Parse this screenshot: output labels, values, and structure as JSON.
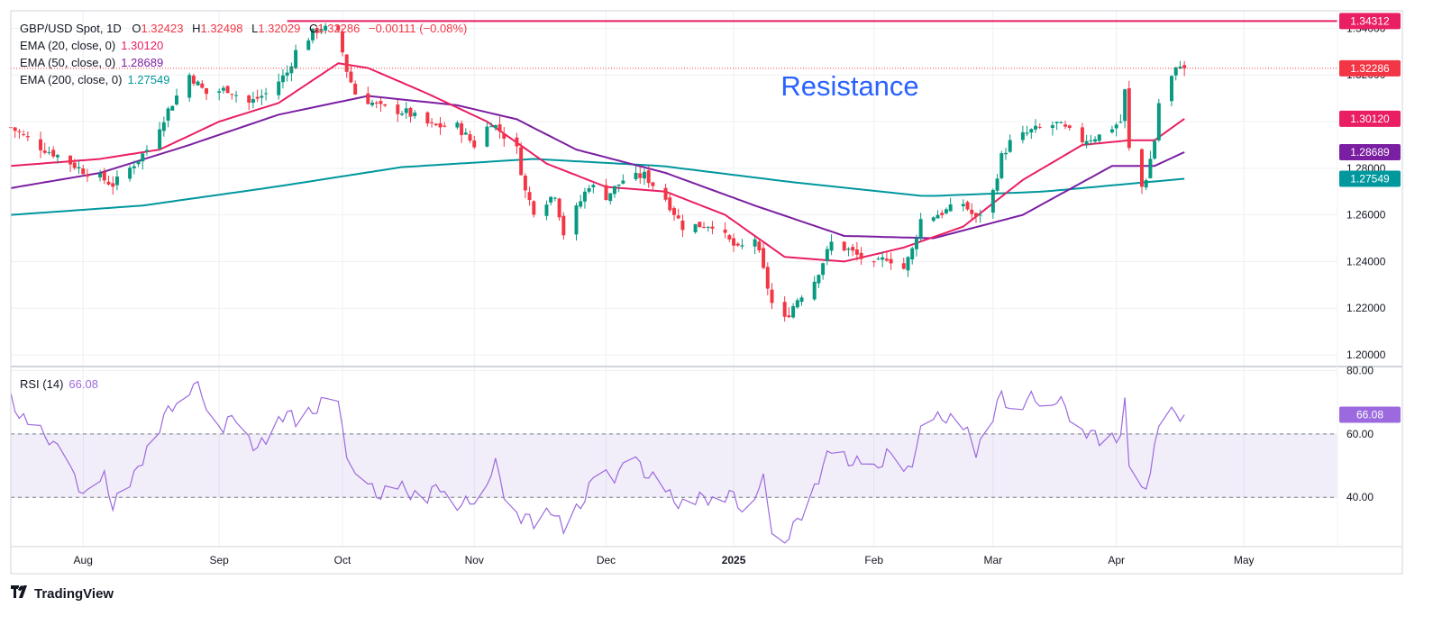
{
  "header": {
    "symbol": "GBP/USD Spot, 1D",
    "ohlc": [
      {
        "k": "O",
        "v": "1.32423"
      },
      {
        "k": "H",
        "v": "1.32498"
      },
      {
        "k": "L",
        "v": "1.32029"
      },
      {
        "k": "C",
        "v": "1.32286"
      }
    ],
    "change": "−0.00111 (−0.08%)",
    "ema20_label": "EMA (20, close, 0)",
    "ema20_value": "1.30120",
    "ema50_label": "EMA (50, close, 0)",
    "ema50_value": "1.28689",
    "ema200_label": "EMA (200, close, 0)",
    "ema200_value": "1.27549"
  },
  "rsi": {
    "label": "RSI (14)",
    "value": "66.08"
  },
  "annotation": {
    "text": "Resistance",
    "level": "1.34312"
  },
  "brand": {
    "name": "TradingView"
  },
  "colors": {
    "up": "#089981",
    "down": "#f23645",
    "ema20": "#e91e63",
    "ema50": "#7b1fa2",
    "ema200": "#00979d",
    "rsi": "#9c6ade",
    "resistance": "#e91e63",
    "text_blue": "#2962ff"
  },
  "chart_data": [
    {
      "type": "candlestick",
      "title": "GBP/USD Spot, 1D",
      "ylim": [
        1.195,
        1.3475
      ],
      "y_ticks": [
        "1.20000",
        "1.22000",
        "1.24000",
        "1.26000",
        "1.28000",
        "1.30000",
        "1.32000",
        "1.34000"
      ],
      "x_ticks": [
        "Aug",
        "Sep",
        "Oct",
        "Nov",
        "Dec",
        "2025",
        "Feb",
        "Mar",
        "Apr",
        "May"
      ],
      "x_tick_dates": [
        "2024-08-01",
        "2024-09-02",
        "2024-10-01",
        "2024-11-01",
        "2024-12-02",
        "2025-01-01",
        "2025-02-03",
        "2025-03-03",
        "2025-04-01",
        "2025-05-01"
      ],
      "x_range": [
        "2024-07-15",
        "2025-05-23"
      ],
      "last_date": "2025-04-17",
      "close_anchors": [
        [
          "2024-07-15",
          1.2975
        ],
        [
          "2024-07-22",
          1.289
        ],
        [
          "2024-07-26",
          1.2855
        ],
        [
          "2024-08-01",
          1.279
        ],
        [
          "2024-08-05",
          1.276
        ],
        [
          "2024-08-08",
          1.273
        ],
        [
          "2024-08-12",
          1.28
        ],
        [
          "2024-08-16",
          1.288
        ],
        [
          "2024-08-21",
          1.305
        ],
        [
          "2024-08-26",
          1.32
        ],
        [
          "2024-08-30",
          1.312
        ],
        [
          "2024-09-04",
          1.314
        ],
        [
          "2024-09-09",
          1.308
        ],
        [
          "2024-09-13",
          1.312
        ],
        [
          "2024-09-18",
          1.321
        ],
        [
          "2024-09-20",
          1.33
        ],
        [
          "2024-09-24",
          1.338
        ],
        [
          "2024-09-26",
          1.3405
        ],
        [
          "2024-09-30",
          1.3375
        ],
        [
          "2024-10-02",
          1.322
        ],
        [
          "2024-10-04",
          1.312
        ],
        [
          "2024-10-10",
          1.306
        ],
        [
          "2024-10-16",
          1.304
        ],
        [
          "2024-10-22",
          1.298
        ],
        [
          "2024-10-28",
          1.298
        ],
        [
          "2024-11-01",
          1.29
        ],
        [
          "2024-11-05",
          1.3
        ],
        [
          "2024-11-07",
          1.296
        ],
        [
          "2024-11-11",
          1.288
        ],
        [
          "2024-11-13",
          1.27
        ],
        [
          "2024-11-15",
          1.262
        ],
        [
          "2024-11-20",
          1.269
        ],
        [
          "2024-11-22",
          1.252
        ],
        [
          "2024-11-28",
          1.273
        ],
        [
          "2024-12-02",
          1.268
        ],
        [
          "2024-12-06",
          1.275
        ],
        [
          "2024-12-11",
          1.277
        ],
        [
          "2024-12-16",
          1.267
        ],
        [
          "2024-12-20",
          1.255
        ],
        [
          "2024-12-27",
          1.256
        ],
        [
          "2025-01-02",
          1.245
        ],
        [
          "2025-01-06",
          1.25
        ],
        [
          "2025-01-10",
          1.222
        ],
        [
          "2025-01-13",
          1.215
        ],
        [
          "2025-01-16",
          1.224
        ],
        [
          "2025-01-20",
          1.232
        ],
        [
          "2025-01-24",
          1.248
        ],
        [
          "2025-01-28",
          1.245
        ],
        [
          "2025-02-03",
          1.238
        ],
        [
          "2025-02-06",
          1.242
        ],
        [
          "2025-02-10",
          1.237
        ],
        [
          "2025-02-12",
          1.245
        ],
        [
          "2025-02-14",
          1.258
        ],
        [
          "2025-02-19",
          1.261
        ],
        [
          "2025-02-24",
          1.265
        ],
        [
          "2025-02-27",
          1.258
        ],
        [
          "2025-03-03",
          1.27
        ],
        [
          "2025-03-05",
          1.285
        ],
        [
          "2025-03-07",
          1.291
        ],
        [
          "2025-03-12",
          1.296
        ],
        [
          "2025-03-18",
          1.299
        ],
        [
          "2025-03-24",
          1.292
        ],
        [
          "2025-03-28",
          1.294
        ],
        [
          "2025-04-02",
          1.3
        ],
        [
          "2025-04-03",
          1.313
        ],
        [
          "2025-04-04",
          1.288
        ],
        [
          "2025-04-07",
          1.272
        ],
        [
          "2025-04-08",
          1.276
        ],
        [
          "2025-04-10",
          1.292
        ],
        [
          "2025-04-11",
          1.308
        ],
        [
          "2025-04-14",
          1.319
        ],
        [
          "2025-04-16",
          1.325
        ],
        [
          "2025-04-17",
          1.32286
        ]
      ],
      "ema20_anchors": [
        [
          "2024-07-15",
          1.281
        ],
        [
          "2024-08-05",
          1.284
        ],
        [
          "2024-08-19",
          1.288
        ],
        [
          "2024-09-02",
          1.3
        ],
        [
          "2024-09-16",
          1.308
        ],
        [
          "2024-09-30",
          1.325
        ],
        [
          "2024-10-07",
          1.323
        ],
        [
          "2024-10-21",
          1.312
        ],
        [
          "2024-11-04",
          1.3
        ],
        [
          "2024-11-18",
          1.282
        ],
        [
          "2024-12-02",
          1.272
        ],
        [
          "2024-12-16",
          1.27
        ],
        [
          "2024-12-30",
          1.26
        ],
        [
          "2025-01-13",
          1.242
        ],
        [
          "2025-01-27",
          1.24
        ],
        [
          "2025-02-10",
          1.246
        ],
        [
          "2025-02-24",
          1.255
        ],
        [
          "2025-03-10",
          1.275
        ],
        [
          "2025-03-24",
          1.29
        ],
        [
          "2025-04-04",
          1.292
        ],
        [
          "2025-04-10",
          1.292
        ],
        [
          "2025-04-17",
          1.3012
        ]
      ],
      "ema50_anchors": [
        [
          "2024-07-15",
          1.2715
        ],
        [
          "2024-08-05",
          1.278
        ],
        [
          "2024-08-26",
          1.29
        ],
        [
          "2024-09-16",
          1.303
        ],
        [
          "2024-10-07",
          1.311
        ],
        [
          "2024-10-28",
          1.307
        ],
        [
          "2024-11-11",
          1.301
        ],
        [
          "2024-11-25",
          1.288
        ],
        [
          "2024-12-16",
          1.278
        ],
        [
          "2025-01-06",
          1.264
        ],
        [
          "2025-01-27",
          1.251
        ],
        [
          "2025-02-17",
          1.25
        ],
        [
          "2025-03-10",
          1.26
        ],
        [
          "2025-03-31",
          1.281
        ],
        [
          "2025-04-10",
          1.281
        ],
        [
          "2025-04-17",
          1.2869
        ]
      ],
      "ema200_anchors": [
        [
          "2024-07-15",
          1.26
        ],
        [
          "2024-08-15",
          1.264
        ],
        [
          "2024-09-15",
          1.272
        ],
        [
          "2024-10-15",
          1.2805
        ],
        [
          "2024-11-15",
          1.284
        ],
        [
          "2024-12-15",
          1.281
        ],
        [
          "2025-01-15",
          1.274
        ],
        [
          "2025-02-15",
          1.268
        ],
        [
          "2025-03-15",
          1.27
        ],
        [
          "2025-04-17",
          1.2755
        ]
      ],
      "last_labels": [
        {
          "value": "1.34312",
          "color": "#e91e63",
          "text": "1.34312"
        },
        {
          "value": "1.32286",
          "color": "#f23645",
          "text": "1.32286"
        },
        {
          "value": "1.30120",
          "color": "#e91e63",
          "text": "1.30120"
        },
        {
          "value": "1.28689",
          "color": "#7b1fa2",
          "text": "1.28689"
        },
        {
          "value": "1.27549",
          "color": "#00979d",
          "text": "1.27549"
        }
      ]
    },
    {
      "type": "line",
      "title": "RSI (14)",
      "ylim": [
        25,
        81
      ],
      "y_ticks": [
        "40.00",
        "60.00",
        "80.00"
      ],
      "band": [
        40,
        60
      ],
      "last_label": "66.08",
      "anchors": [
        [
          "2024-07-15",
          71
        ],
        [
          "2024-07-19",
          62
        ],
        [
          "2024-07-24",
          59
        ],
        [
          "2024-07-29",
          48
        ],
        [
          "2024-08-02",
          40
        ],
        [
          "2024-08-06",
          46
        ],
        [
          "2024-08-08",
          38
        ],
        [
          "2024-08-13",
          46
        ],
        [
          "2024-08-16",
          56
        ],
        [
          "2024-08-21",
          67
        ],
        [
          "2024-08-23",
          71
        ],
        [
          "2024-08-27",
          76
        ],
        [
          "2024-08-30",
          70
        ],
        [
          "2024-09-03",
          62
        ],
        [
          "2024-09-06",
          66
        ],
        [
          "2024-09-11",
          55
        ],
        [
          "2024-09-13",
          58
        ],
        [
          "2024-09-18",
          68
        ],
        [
          "2024-09-20",
          62
        ],
        [
          "2024-09-23",
          66
        ],
        [
          "2024-09-26",
          70
        ],
        [
          "2024-09-30",
          68
        ],
        [
          "2024-10-02",
          55
        ],
        [
          "2024-10-04",
          45
        ],
        [
          "2024-10-10",
          41
        ],
        [
          "2024-10-14",
          43
        ],
        [
          "2024-10-21",
          40
        ],
        [
          "2024-10-24",
          44
        ],
        [
          "2024-10-29",
          37
        ],
        [
          "2024-11-01",
          40
        ],
        [
          "2024-11-06",
          50
        ],
        [
          "2024-11-08",
          42
        ],
        [
          "2024-11-12",
          34
        ],
        [
          "2024-11-15",
          32
        ],
        [
          "2024-11-19",
          37
        ],
        [
          "2024-11-22",
          29
        ],
        [
          "2024-11-26",
          38
        ],
        [
          "2024-11-29",
          45
        ],
        [
          "2024-12-04",
          47
        ],
        [
          "2024-12-09",
          51
        ],
        [
          "2024-12-12",
          47
        ],
        [
          "2024-12-17",
          40
        ],
        [
          "2024-12-20",
          38
        ],
        [
          "2024-12-26",
          40
        ],
        [
          "2024-12-31",
          41
        ],
        [
          "2025-01-03",
          37
        ],
        [
          "2025-01-08",
          45
        ],
        [
          "2025-01-10",
          31
        ],
        [
          "2025-01-13",
          27
        ],
        [
          "2025-01-16",
          32
        ],
        [
          "2025-01-20",
          44
        ],
        [
          "2025-01-24",
          55
        ],
        [
          "2025-01-28",
          52
        ],
        [
          "2025-02-03",
          48
        ],
        [
          "2025-02-06",
          54
        ],
        [
          "2025-02-10",
          46
        ],
        [
          "2025-02-12",
          52
        ],
        [
          "2025-02-14",
          60
        ],
        [
          "2025-02-19",
          66
        ],
        [
          "2025-02-24",
          62
        ],
        [
          "2025-02-27",
          55
        ],
        [
          "2025-03-03",
          66
        ],
        [
          "2025-03-05",
          72
        ],
        [
          "2025-03-07",
          69
        ],
        [
          "2025-03-12",
          71
        ],
        [
          "2025-03-18",
          71
        ],
        [
          "2025-03-24",
          62
        ],
        [
          "2025-03-28",
          58
        ],
        [
          "2025-04-02",
          60
        ],
        [
          "2025-04-03",
          69
        ],
        [
          "2025-04-04",
          50
        ],
        [
          "2025-04-07",
          41
        ],
        [
          "2025-04-08",
          44
        ],
        [
          "2025-04-10",
          55
        ],
        [
          "2025-04-11",
          61
        ],
        [
          "2025-04-14",
          66
        ],
        [
          "2025-04-16",
          66.5
        ],
        [
          "2025-04-17",
          66.08
        ]
      ]
    }
  ]
}
